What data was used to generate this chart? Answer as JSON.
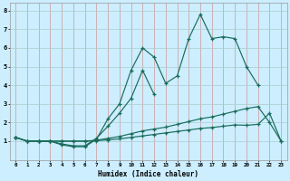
{
  "xlabel": "Humidex (Indice chaleur)",
  "bg_color": "#cceeff",
  "grid_color": "#aacccc",
  "line_color": "#1a6b5a",
  "xlim": [
    -0.5,
    23.5
  ],
  "ylim": [
    0,
    8.4
  ],
  "xticks": [
    0,
    1,
    2,
    3,
    4,
    5,
    6,
    7,
    8,
    9,
    10,
    11,
    12,
    13,
    14,
    15,
    16,
    17,
    18,
    19,
    20,
    21,
    22,
    23
  ],
  "yticks": [
    1,
    2,
    3,
    4,
    5,
    6,
    7,
    8
  ],
  "series1_x": [
    0,
    1,
    2,
    3,
    4,
    5,
    6,
    7,
    8,
    9,
    10,
    11,
    12,
    13,
    14,
    15,
    16,
    17,
    18,
    19,
    20,
    21
  ],
  "series1_y": [
    1.2,
    1.0,
    1.0,
    1.0,
    0.8,
    0.7,
    0.7,
    1.1,
    2.2,
    3.0,
    4.8,
    6.0,
    5.5,
    4.1,
    4.5,
    6.5,
    7.8,
    6.5,
    6.6,
    6.5,
    5.0,
    4.0
  ],
  "series2_x": [
    0,
    1,
    2,
    3,
    4,
    5,
    6,
    7,
    8,
    9,
    10,
    11,
    12
  ],
  "series2_y": [
    1.2,
    1.0,
    1.0,
    1.0,
    0.85,
    0.75,
    0.75,
    1.15,
    1.8,
    2.5,
    3.3,
    4.8,
    3.5
  ],
  "series3_x": [
    0,
    1,
    2,
    3,
    4,
    5,
    6,
    7,
    8,
    9,
    10,
    11,
    12,
    13,
    14,
    15,
    16,
    17,
    18,
    19,
    20,
    21,
    22,
    23
  ],
  "series3_y": [
    1.2,
    1.0,
    1.0,
    1.0,
    1.0,
    1.0,
    1.0,
    1.05,
    1.15,
    1.25,
    1.4,
    1.55,
    1.65,
    1.75,
    1.9,
    2.05,
    2.2,
    2.3,
    2.45,
    2.6,
    2.75,
    2.85,
    2.0,
    1.0
  ],
  "series4_x": [
    0,
    1,
    2,
    3,
    4,
    5,
    6,
    7,
    8,
    9,
    10,
    11,
    12,
    13,
    14,
    15,
    16,
    17,
    18,
    19,
    20,
    21,
    22,
    23
  ],
  "series4_y": [
    1.2,
    1.0,
    1.0,
    1.0,
    1.0,
    1.0,
    1.0,
    1.02,
    1.07,
    1.12,
    1.2,
    1.28,
    1.36,
    1.44,
    1.52,
    1.6,
    1.68,
    1.73,
    1.8,
    1.87,
    1.85,
    1.9,
    2.5,
    1.0
  ]
}
